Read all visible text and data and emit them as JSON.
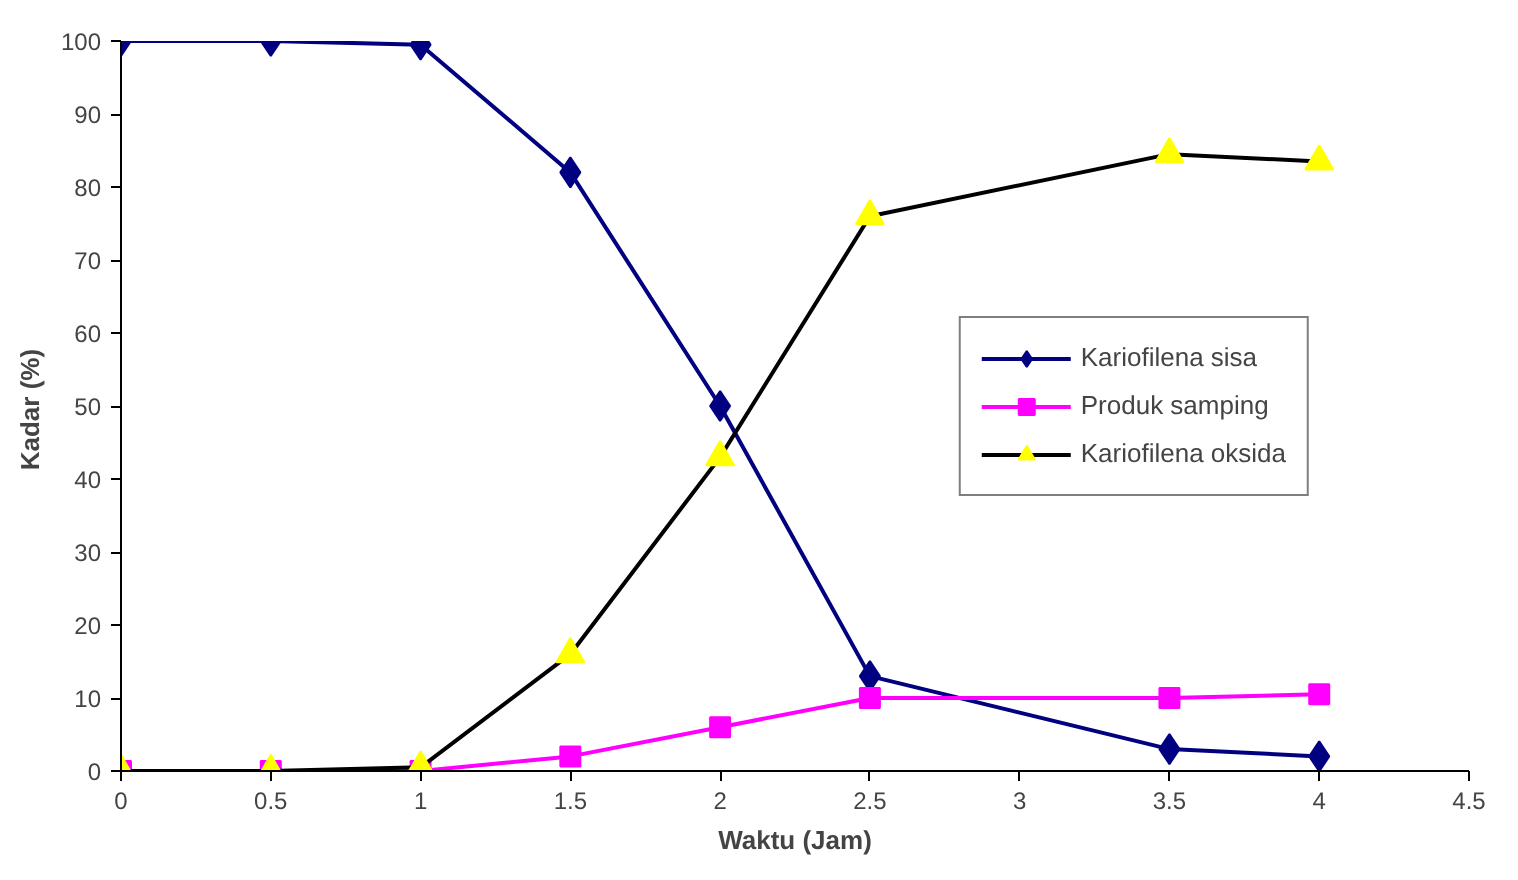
{
  "chart_data": {
    "type": "line",
    "xlabel": "Waktu (Jam)",
    "ylabel": "Kadar  (%)",
    "x": [
      0,
      0.5,
      1,
      1.5,
      2,
      2.5,
      3.5,
      4
    ],
    "xlim": [
      0,
      4.5
    ],
    "xticks": [
      0,
      0.5,
      1,
      1.5,
      2,
      2.5,
      3,
      3.5,
      4,
      4.5
    ],
    "ylim": [
      0,
      100
    ],
    "yticks": [
      0,
      10,
      20,
      30,
      40,
      50,
      60,
      70,
      80,
      90,
      100
    ],
    "grid": false,
    "legend": "right",
    "series": [
      {
        "name": "Kariofilena sisa",
        "color": "#000080",
        "marker": "diamond",
        "values": [
          100,
          100,
          99.5,
          82,
          50,
          13,
          3,
          2
        ]
      },
      {
        "name": "Produk samping",
        "color": "#ff00ff",
        "marker": "square",
        "values": [
          0,
          0,
          0,
          2,
          6,
          10,
          10,
          10.5
        ]
      },
      {
        "name": "Kariofilena oksida",
        "color": "#000000",
        "colors": [
          "#ffff00",
          "#ffff00",
          "#ffff00",
          "#ffff00",
          "#ffff00",
          "#ffff00",
          "#ffff00",
          "#ffff00"
        ],
        "marker": "triangle",
        "values": [
          0,
          0,
          0.5,
          16,
          43,
          76,
          84.5,
          83.5
        ]
      }
    ]
  }
}
